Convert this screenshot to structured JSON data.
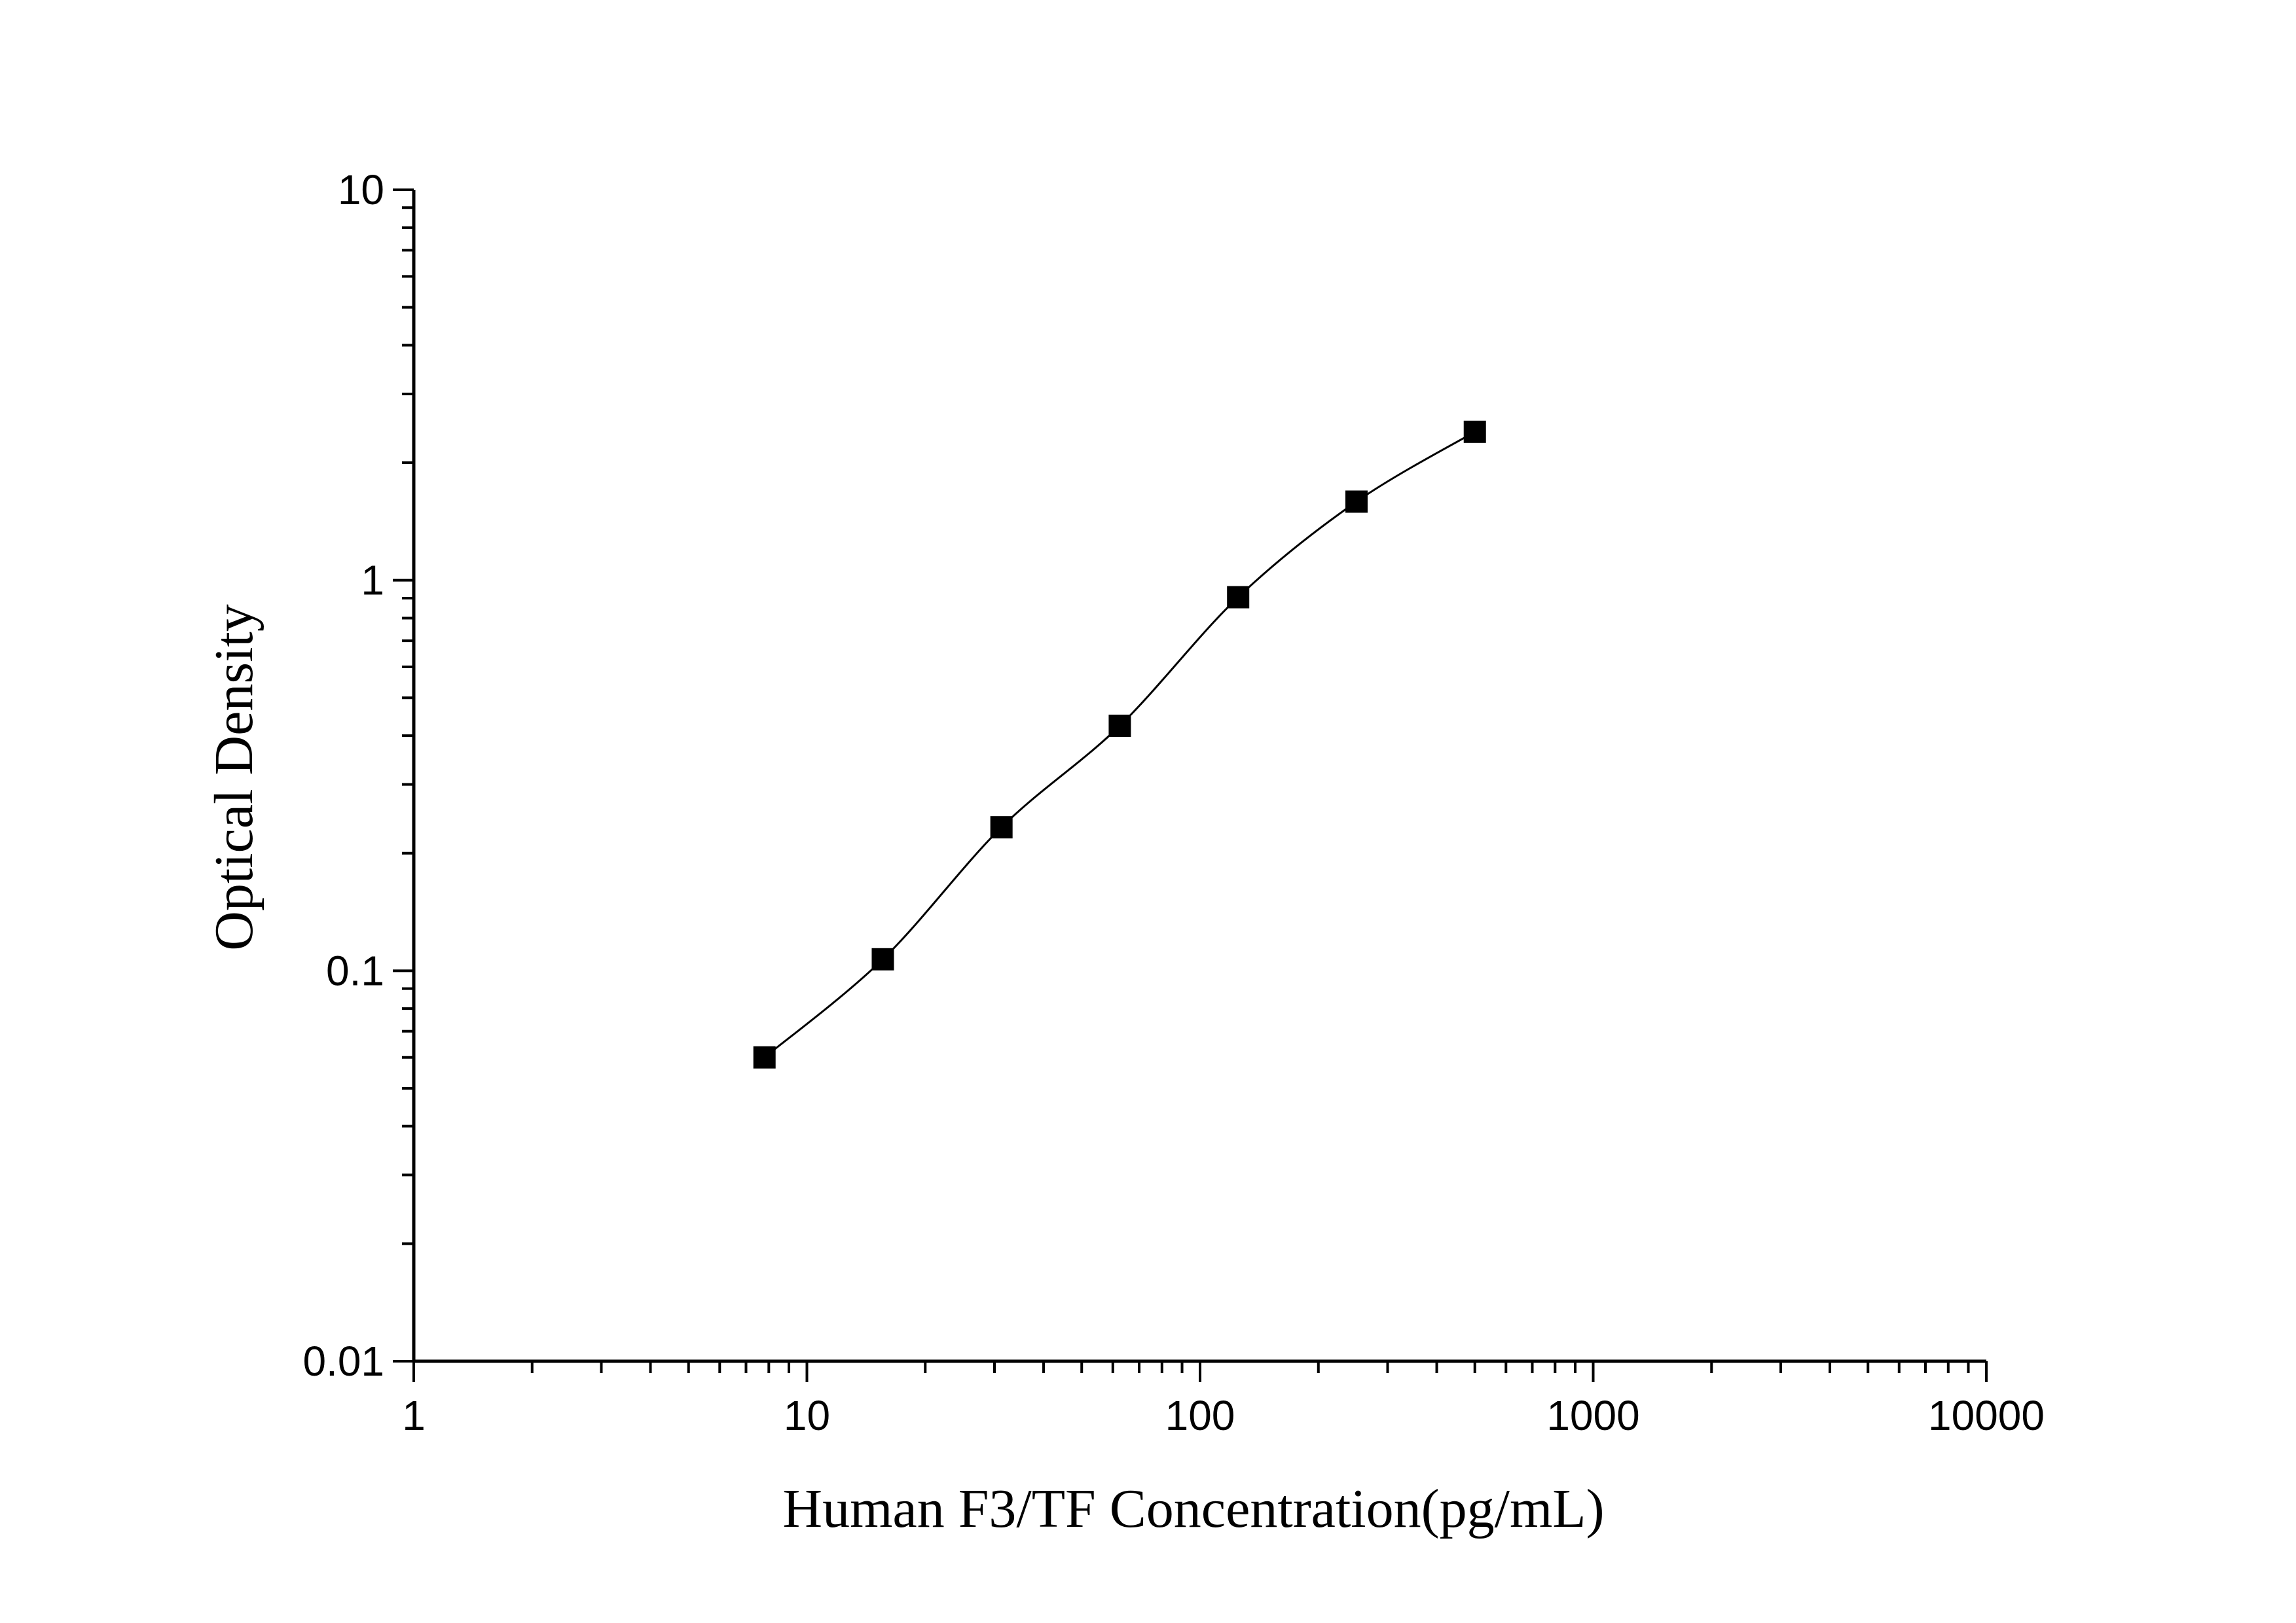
{
  "chart_data": {
    "type": "scatter",
    "title": "",
    "xlabel": "Human F3/TF Concentration(pg/mL)",
    "ylabel": "Optical Density",
    "xscale": "log",
    "yscale": "log",
    "xlim": [
      1,
      10000
    ],
    "ylim": [
      0.01,
      10
    ],
    "x_tick_labels": [
      "1",
      "10",
      "100",
      "1000",
      "10000"
    ],
    "y_tick_labels": [
      "0.01",
      "0.1",
      "1",
      "10"
    ],
    "grid": false,
    "legend": "none",
    "marker": "filled-square",
    "fit": "smooth standard curve through points",
    "series": [
      {
        "x": [
          7.8,
          15.6,
          31.25,
          62.5,
          125,
          250,
          500
        ],
        "y": [
          0.06,
          0.107,
          0.233,
          0.424,
          0.905,
          1.59,
          2.4
        ]
      }
    ],
    "colors": {
      "marker": "#000000",
      "line": "#000000",
      "axes": "#000000",
      "background": "#ffffff"
    }
  }
}
